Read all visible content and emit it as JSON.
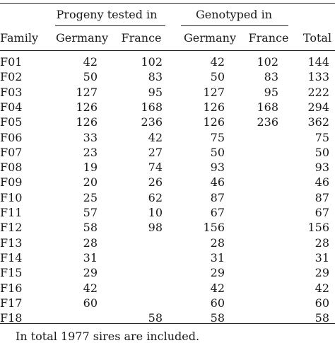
{
  "table": {
    "group_headers": {
      "progeny": "Progeny tested in",
      "genotyped": "Genotyped in"
    },
    "columns": [
      "Family",
      "Germany",
      "France",
      "Germany",
      "France",
      "Total"
    ],
    "rows": [
      [
        "F01",
        "42",
        "102",
        "42",
        "102",
        "144"
      ],
      [
        "F02",
        "50",
        "83",
        "50",
        "83",
        "133"
      ],
      [
        "F03",
        "127",
        "95",
        "127",
        "95",
        "222"
      ],
      [
        "F04",
        "126",
        "168",
        "126",
        "168",
        "294"
      ],
      [
        "F05",
        "126",
        "236",
        "126",
        "236",
        "362"
      ],
      [
        "F06",
        "33",
        "42",
        "75",
        "",
        "75"
      ],
      [
        "F07",
        "23",
        "27",
        "50",
        "",
        "50"
      ],
      [
        "F08",
        "19",
        "74",
        "93",
        "",
        "93"
      ],
      [
        "F09",
        "20",
        "26",
        "46",
        "",
        "46"
      ],
      [
        "F10",
        "25",
        "62",
        "87",
        "",
        "87"
      ],
      [
        "F11",
        "57",
        "10",
        "67",
        "",
        "67"
      ],
      [
        "F12",
        "58",
        "98",
        "156",
        "",
        "156"
      ],
      [
        "F13",
        "28",
        "",
        "28",
        "",
        "28"
      ],
      [
        "F14",
        "31",
        "",
        "31",
        "",
        "31"
      ],
      [
        "F15",
        "29",
        "",
        "29",
        "",
        "29"
      ],
      [
        "F16",
        "42",
        "",
        "42",
        "",
        "42"
      ],
      [
        "F17",
        "60",
        "",
        "60",
        "",
        "60"
      ],
      [
        "F18",
        "",
        "58",
        "58",
        "",
        "58"
      ]
    ],
    "footnote": "In total 1977 sires are included."
  }
}
